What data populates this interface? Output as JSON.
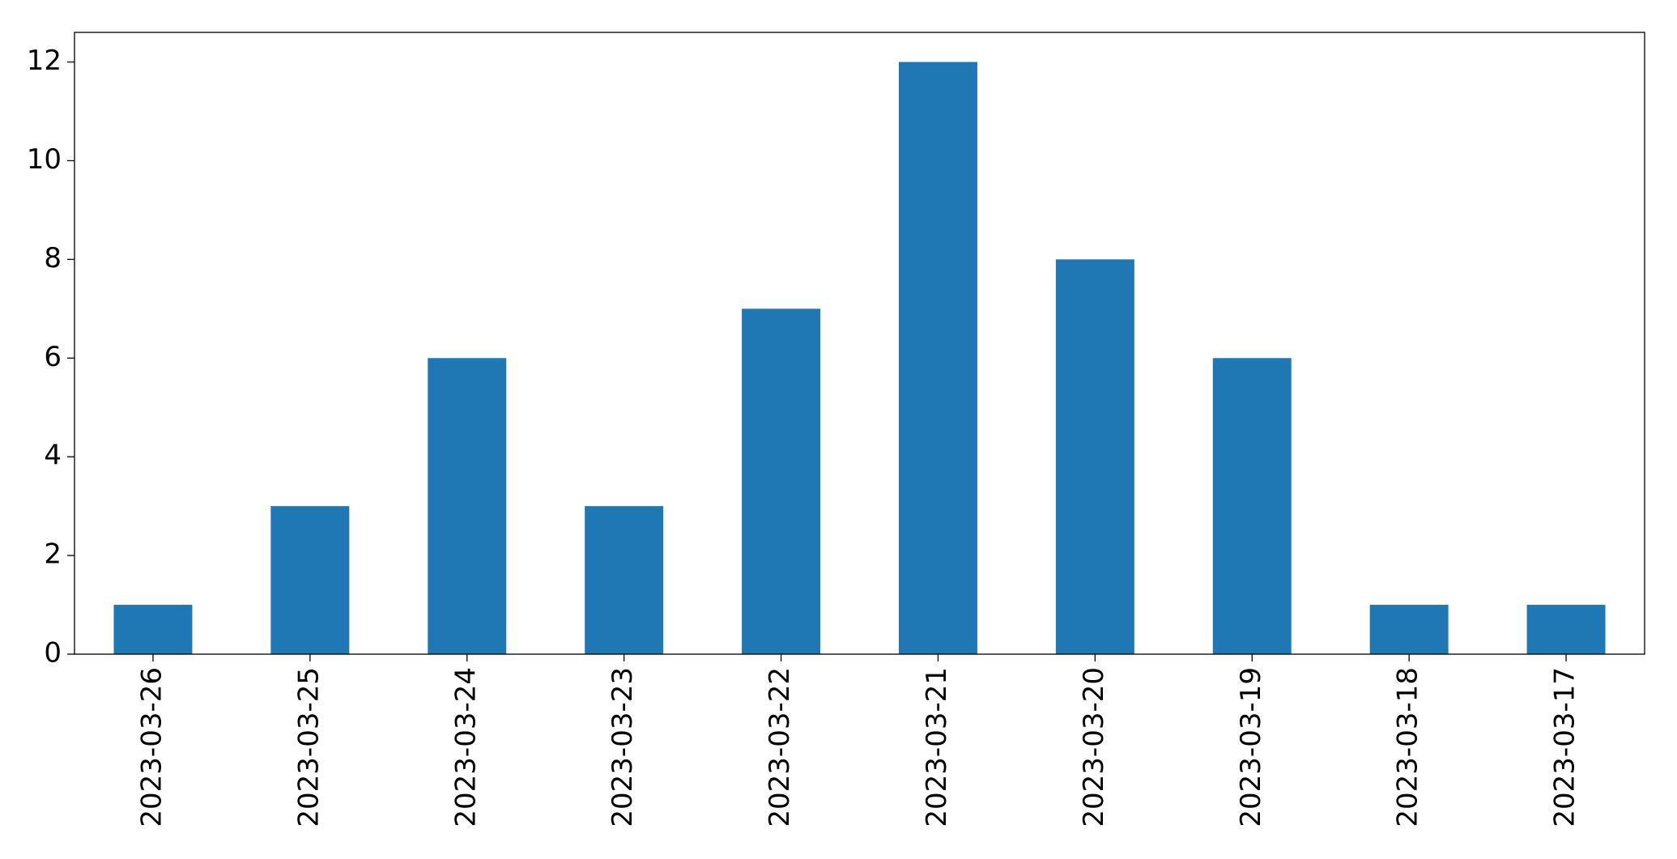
{
  "chart_data": {
    "type": "bar",
    "categories": [
      "2023-03-26",
      "2023-03-25",
      "2023-03-24",
      "2023-03-23",
      "2023-03-22",
      "2023-03-21",
      "2023-03-20",
      "2023-03-19",
      "2023-03-18",
      "2023-03-17"
    ],
    "values": [
      1,
      3,
      6,
      3,
      7,
      12,
      8,
      6,
      1,
      1
    ],
    "color": "#1f77b4",
    "ylim": [
      0,
      12.6
    ],
    "yticks": [
      0,
      2,
      4,
      6,
      8,
      10,
      12
    ],
    "grid": false
  }
}
